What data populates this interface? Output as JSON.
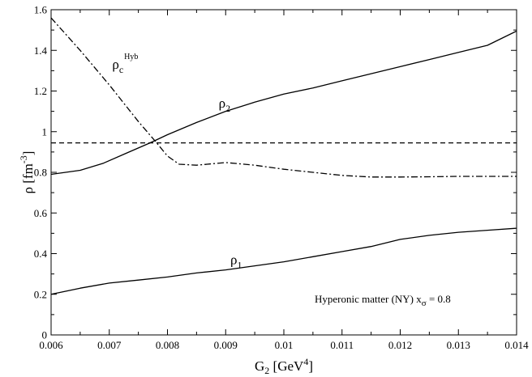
{
  "chart_data": {
    "type": "line",
    "xlabel": {
      "main": "G",
      "sub": "2",
      "unit_pre": " [GeV",
      "unit_sup": "4",
      "unit_post": "]"
    },
    "ylabel": {
      "main": "ρ [fm",
      "sup": "-3",
      "post": "]"
    },
    "xlim": [
      0.006,
      0.014
    ],
    "ylim": [
      0,
      1.6
    ],
    "x_ticks": [
      0.006,
      0.007,
      0.008,
      0.009,
      0.01,
      0.011,
      0.012,
      0.013,
      0.014
    ],
    "x_tick_labels": [
      "0.006",
      "0.007",
      "0.008",
      "0.009",
      "0.01",
      "0.011",
      "0.012",
      "0.013",
      "0.014"
    ],
    "y_ticks": [
      0,
      0.2,
      0.4,
      0.6,
      0.8,
      1.0,
      1.2,
      1.4,
      1.6
    ],
    "y_tick_labels": [
      "0",
      "0.2",
      "0.4",
      "0.6",
      "0.8",
      "1",
      "1.2",
      "1.4",
      "1.6"
    ],
    "grid": false,
    "series": [
      {
        "label_main": "ρ",
        "label_sub": "2",
        "style": "solid",
        "x": [
          0.006,
          0.0065,
          0.0069,
          0.0073,
          0.0077,
          0.008,
          0.0085,
          0.009,
          0.0095,
          0.01,
          0.0105,
          0.011,
          0.0115,
          0.012,
          0.0125,
          0.013,
          0.0135,
          0.014
        ],
        "y": [
          0.79,
          0.81,
          0.845,
          0.895,
          0.945,
          0.985,
          1.045,
          1.1,
          1.145,
          1.185,
          1.215,
          1.25,
          1.285,
          1.32,
          1.355,
          1.39,
          1.425,
          1.495
        ]
      },
      {
        "label_main": "ρ",
        "label_sub": "1",
        "style": "solid",
        "x": [
          0.006,
          0.0065,
          0.007,
          0.0075,
          0.008,
          0.0085,
          0.009,
          0.0095,
          0.01,
          0.0105,
          0.011,
          0.0115,
          0.012,
          0.0125,
          0.013,
          0.0135,
          0.014
        ],
        "y": [
          0.2,
          0.23,
          0.255,
          0.27,
          0.285,
          0.305,
          0.32,
          0.34,
          0.36,
          0.385,
          0.41,
          0.435,
          0.47,
          0.49,
          0.505,
          0.515,
          0.525
        ]
      },
      {
        "label_main": "ρ",
        "label_sub": "c",
        "label_sup": "Hyb",
        "style": "dashdot",
        "x": [
          0.006,
          0.0065,
          0.007,
          0.0075,
          0.0078,
          0.008,
          0.0082,
          0.0085,
          0.009,
          0.0095,
          0.01,
          0.0105,
          0.011,
          0.0115,
          0.012,
          0.0125,
          0.013,
          0.0135,
          0.014
        ],
        "y": [
          1.56,
          1.4,
          1.23,
          1.05,
          0.95,
          0.88,
          0.84,
          0.835,
          0.848,
          0.835,
          0.815,
          0.8,
          0.785,
          0.777,
          0.777,
          0.778,
          0.78,
          0.78,
          0.78
        ]
      },
      {
        "style": "dashed",
        "x": [
          0.006,
          0.014
        ],
        "y": [
          0.945,
          0.945
        ]
      }
    ],
    "annotation": {
      "main": "Hyperonic matter (NY)  x",
      "sub": "σ",
      "post": " = 0.8"
    }
  }
}
